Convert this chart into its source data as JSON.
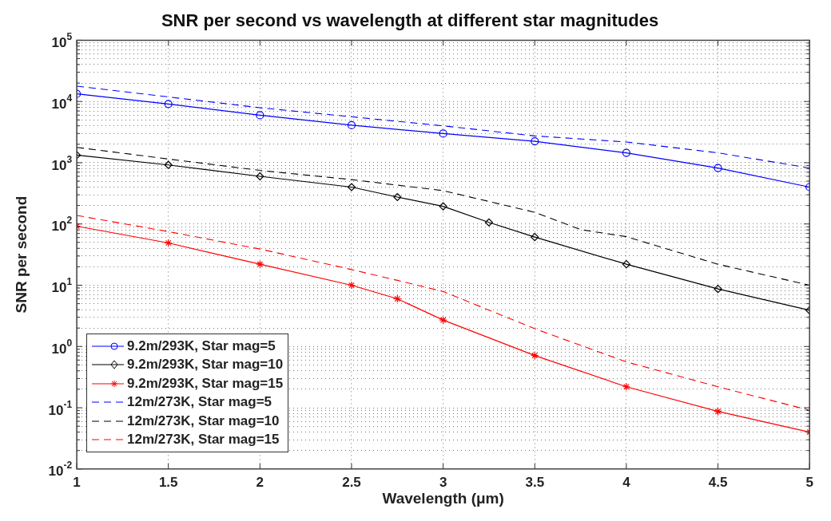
{
  "chart_data": {
    "type": "line",
    "title": "SNR per second vs wavelength at different star magnitudes",
    "xlabel": "Wavelength (μm)",
    "ylabel": "SNR per second",
    "log": "y",
    "grid": true,
    "legend": "bottom left",
    "xlim": [
      1,
      5
    ],
    "xticks": [
      1,
      1.5,
      2,
      2.5,
      3,
      3.5,
      4,
      4.5,
      5
    ],
    "ylim": [
      0.01,
      100000
    ],
    "yticks": [
      {
        "value": 0.01,
        "label": "10$^{-2}$"
      },
      {
        "value": 0.02,
        "label": null
      },
      {
        "value": 0.03,
        "label": null
      },
      {
        "value": 0.04,
        "label": null
      },
      {
        "value": 0.05,
        "label": null
      },
      {
        "value": 0.06,
        "label": null
      },
      {
        "value": 0.07,
        "label": null
      },
      {
        "value": 0.08,
        "label": null
      },
      {
        "value": 0.09,
        "label": null
      },
      {
        "value": 0.1,
        "label": "10$^{-1}$"
      },
      {
        "value": 0.2,
        "label": null
      },
      {
        "value": 0.3,
        "label": null
      },
      {
        "value": 0.4,
        "label": null
      },
      {
        "value": 0.5,
        "label": null
      },
      {
        "value": 0.6,
        "label": null
      },
      {
        "value": 0.7,
        "label": null
      },
      {
        "value": 0.8,
        "label": null
      },
      {
        "value": 0.9,
        "label": null
      },
      {
        "value": 1,
        "label": "10$^{0}$"
      },
      {
        "value": 2,
        "label": null
      },
      {
        "value": 3,
        "label": null
      },
      {
        "value": 4,
        "label": null
      },
      {
        "value": 5,
        "label": null
      },
      {
        "value": 6,
        "label": null
      },
      {
        "value": 7,
        "label": null
      },
      {
        "value": 8,
        "label": null
      },
      {
        "value": 9,
        "label": null
      },
      {
        "value": 10,
        "label": "10$^{1}$"
      },
      {
        "value": 20,
        "label": null
      },
      {
        "value": 30,
        "label": null
      },
      {
        "value": 40,
        "label": null
      },
      {
        "value": 50,
        "label": null
      },
      {
        "value": 60,
        "label": null
      },
      {
        "value": 70,
        "label": null
      },
      {
        "value": 80,
        "label": null
      },
      {
        "value": 90,
        "label": null
      },
      {
        "value": 100,
        "label": "10$^{2}$"
      },
      {
        "value": 200,
        "label": null
      },
      {
        "value": 300,
        "label": null
      },
      {
        "value": 400,
        "label": null
      },
      {
        "value": 500,
        "label": null
      },
      {
        "value": 600,
        "label": null
      },
      {
        "value": 700,
        "label": null
      },
      {
        "value": 800,
        "label": null
      },
      {
        "value": 900,
        "label": null
      },
      {
        "value": 1000,
        "label": "10$^{3}$"
      },
      {
        "value": 2000,
        "label": null
      },
      {
        "value": 3000,
        "label": null
      },
      {
        "value": 4000,
        "label": null
      },
      {
        "value": 5000,
        "label": null
      },
      {
        "value": 6000,
        "label": null
      },
      {
        "value": 7000,
        "label": null
      },
      {
        "value": 8000,
        "label": null
      },
      {
        "value": 9000,
        "label": null
      },
      {
        "value": 10000,
        "label": "10$^{4}$"
      },
      {
        "value": 20000,
        "label": null
      },
      {
        "value": 30000,
        "label": null
      },
      {
        "value": 40000,
        "label": null
      },
      {
        "value": 50000,
        "label": null
      },
      {
        "value": 60000,
        "label": null
      },
      {
        "value": 70000,
        "label": null
      },
      {
        "value": 80000,
        "label": null
      },
      {
        "value": 90000,
        "label": null
      },
      {
        "value": 100000,
        "label": "10$^{5}$"
      }
    ],
    "series": [
      {
        "name": "9.2m/293K, Star mag=5",
        "color": "#0000ff",
        "marker": "circle",
        "line_style": "solid",
        "x": [
          1,
          1.5,
          2,
          2.5,
          3,
          3.5,
          4,
          4.5,
          5
        ],
        "values": [
          13300,
          9100,
          5960,
          4100,
          2990,
          2240,
          1450,
          820,
          400
        ]
      },
      {
        "name": "9.2m/293K, Star mag=10",
        "color": "#000000",
        "marker": "diamond",
        "line_style": "solid",
        "x": [
          1,
          1.5,
          2,
          2.5,
          2.75,
          3,
          3.25,
          3.5,
          4,
          4.5,
          5
        ],
        "values": [
          1330,
          920,
          600,
          400,
          275,
          194,
          106,
          61,
          22,
          8.7,
          3.9
        ]
      },
      {
        "name": "9.2m/293K, Star mag=15",
        "color": "#ff0000",
        "marker": "cross",
        "line_style": "solid",
        "x": [
          1,
          1.5,
          2,
          2.5,
          2.75,
          3,
          3.5,
          4,
          4.5,
          5
        ],
        "values": [
          92,
          49,
          22,
          10,
          6,
          2.7,
          0.71,
          0.22,
          0.087,
          0.04
        ]
      },
      {
        "name": "12m/273K, Star mag=5",
        "color": "#0000ff",
        "marker": "none",
        "line_style": "dashed",
        "x": [
          1,
          2,
          3,
          3.5,
          4,
          4.5,
          5
        ],
        "values": [
          17800,
          7900,
          4000,
          2740,
          2180,
          1450,
          820
        ]
      },
      {
        "name": "12m/273K, Star mag=10",
        "color": "#000000",
        "marker": "none",
        "line_style": "dashed",
        "x": [
          1,
          1.5,
          2,
          2.5,
          3,
          3.5,
          3.75,
          4,
          4.5,
          5
        ],
        "values": [
          1780,
          1150,
          750,
          530,
          350,
          155,
          81,
          62,
          22,
          10
        ]
      },
      {
        "name": "12m/273K, Star mag=15",
        "color": "#ff0000",
        "marker": "none",
        "line_style": "dashed",
        "x": [
          1,
          1.5,
          2,
          2.5,
          2.75,
          3,
          3.5,
          4,
          4.5,
          5
        ],
        "values": [
          138,
          75,
          39,
          18,
          12,
          7.9,
          1.95,
          0.56,
          0.22,
          0.091
        ]
      }
    ]
  }
}
